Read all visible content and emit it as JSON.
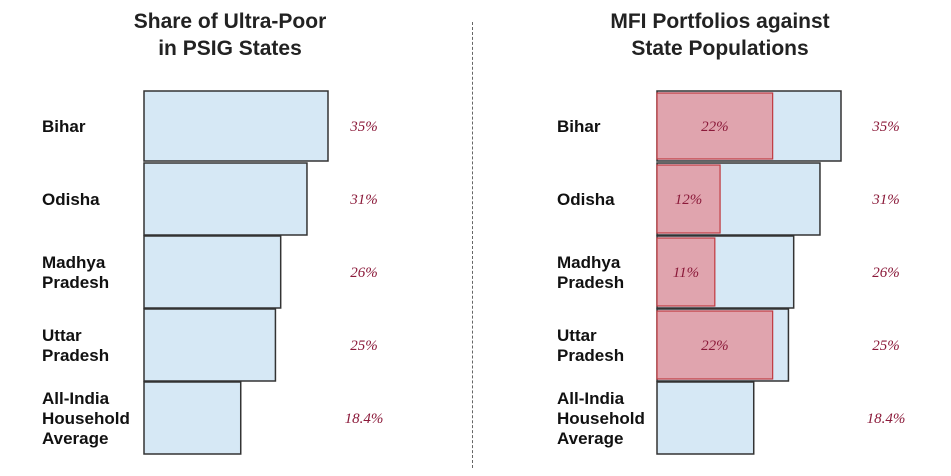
{
  "chart_data": [
    {
      "type": "bar",
      "title": "Share of Ultra-Poor\nin PSIG States",
      "categories": [
        [
          "Bihar"
        ],
        [
          "Odisha"
        ],
        [
          "Madhya",
          "Pradesh"
        ],
        [
          "Uttar",
          "Pradesh"
        ],
        [
          "All-India",
          "Household",
          "Average"
        ]
      ],
      "values": [
        35,
        31,
        26,
        25,
        18.4
      ],
      "value_labels": [
        "35%",
        "31%",
        "26%",
        "25%",
        "18.4%"
      ],
      "colors": {
        "bar": "#d6e8f5",
        "bar_edge": "#333333",
        "label": "#8b1a3a"
      }
    },
    {
      "type": "bar",
      "title": "MFI Portfolios against\nState Populations",
      "categories": [
        [
          "Bihar"
        ],
        [
          "Odisha"
        ],
        [
          "Madhya",
          "Pradesh"
        ],
        [
          "Uttar",
          "Pradesh"
        ],
        [
          "All-India",
          "Household",
          "Average"
        ]
      ],
      "series": [
        {
          "values": [
            35,
            31,
            26,
            25,
            18.4
          ],
          "labels": [
            "35%",
            "31%",
            "26%",
            "25%",
            "18.4%"
          ]
        },
        {
          "values": [
            22,
            12,
            11,
            22,
            null
          ],
          "labels": [
            "22%",
            "12%",
            "11%",
            "22%",
            ""
          ]
        }
      ],
      "colors": {
        "bar": "#d6e8f5",
        "overlay": "#e0a4ae",
        "overlay_edge": "#c0393f",
        "bar_edge": "#333333",
        "label": "#8b1a3a"
      }
    }
  ]
}
